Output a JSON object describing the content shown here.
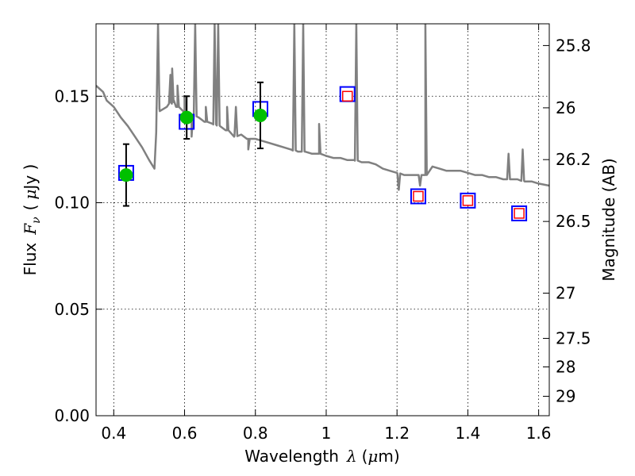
{
  "chart_data": {
    "type": "scatter",
    "xlabel_text": "Wavelength",
    "xlabel_symbol": "λ",
    "xlabel_unit_open": "(",
    "xlabel_unit_mu": "μ",
    "xlabel_unit_rest": "m)",
    "ylabel_text": "Flux",
    "ylabel_symbol": "F",
    "ylabel_sub": "ν",
    "ylabel_unit_open": "(",
    "ylabel_unit_mu": "μ",
    "ylabel_unit_rest": "Jy )",
    "y2label": "Magnitude (AB)",
    "xlim": [
      0.35,
      1.63
    ],
    "ylim": [
      0.0,
      0.184
    ],
    "x_ticks": [
      0.4,
      0.6,
      0.8,
      1.0,
      1.2,
      1.4,
      1.6
    ],
    "x_tick_labels": [
      "0.4",
      "0.6",
      "0.8",
      "1",
      "1.2",
      "1.4",
      "1.6"
    ],
    "y_ticks": [
      0.0,
      0.05,
      0.1,
      0.15
    ],
    "y_tick_labels": [
      "0.00",
      "0.05",
      "0.10",
      "0.15"
    ],
    "mag_ticks": [
      25.8,
      26,
      26.2,
      26.5,
      27,
      27.5,
      28,
      29
    ],
    "mag_tick_labels": [
      "25.8",
      "26",
      "26.2",
      "26.5",
      "27",
      "27.5",
      "28",
      "29"
    ],
    "grid": true,
    "colors": {
      "model": "#808080",
      "observed": "#00c000",
      "model_band_outer": "#0000ff",
      "model_band_inner": "#ff0000",
      "errorbar": "#000000"
    },
    "series": [
      {
        "name": "model spectrum",
        "kind": "line",
        "x": [
          0.35,
          0.37,
          0.38,
          0.4,
          0.42,
          0.44,
          0.46,
          0.48,
          0.5,
          0.515,
          0.52,
          0.521,
          0.53,
          0.55,
          0.57,
          0.58,
          0.6,
          0.62,
          0.64,
          0.66,
          0.68,
          0.7,
          0.72,
          0.74,
          0.76,
          0.78,
          0.8,
          0.82,
          0.84,
          0.86,
          0.88,
          0.9,
          0.92,
          0.94,
          0.96,
          0.98,
          1.0,
          1.02,
          1.04,
          1.06,
          1.08,
          1.1,
          1.12,
          1.14,
          1.16,
          1.18,
          1.2,
          1.22,
          1.24,
          1.26,
          1.28,
          1.3,
          1.32,
          1.34,
          1.36,
          1.38,
          1.4,
          1.42,
          1.44,
          1.46,
          1.48,
          1.5,
          1.52,
          1.54,
          1.56,
          1.58,
          1.6,
          1.63
        ],
        "y": [
          0.155,
          0.152,
          0.148,
          0.145,
          0.14,
          0.136,
          0.131,
          0.126,
          0.12,
          0.116,
          0.133,
          0.145,
          0.143,
          0.145,
          0.148,
          0.145,
          0.143,
          0.141,
          0.14,
          0.138,
          0.137,
          0.136,
          0.134,
          0.131,
          0.132,
          0.13,
          0.13,
          0.129,
          0.128,
          0.127,
          0.126,
          0.125,
          0.124,
          0.124,
          0.123,
          0.123,
          0.122,
          0.121,
          0.121,
          0.12,
          0.12,
          0.119,
          0.119,
          0.118,
          0.116,
          0.115,
          0.114,
          0.113,
          0.113,
          0.113,
          0.113,
          0.117,
          0.116,
          0.115,
          0.115,
          0.115,
          0.114,
          0.113,
          0.113,
          0.112,
          0.112,
          0.111,
          0.111,
          0.111,
          0.11,
          0.11,
          0.109,
          0.108
        ],
        "spikes": [
          {
            "x": 0.525,
            "y": 0.184
          },
          {
            "x": 0.56,
            "y": 0.16
          },
          {
            "x": 0.565,
            "y": 0.163
          },
          {
            "x": 0.58,
            "y": 0.155
          },
          {
            "x": 0.6,
            "y": 0.15
          },
          {
            "x": 0.63,
            "y": 0.184
          },
          {
            "x": 0.66,
            "y": 0.145
          },
          {
            "x": 0.685,
            "y": 0.184
          },
          {
            "x": 0.695,
            "y": 0.184
          },
          {
            "x": 0.72,
            "y": 0.145
          },
          {
            "x": 0.745,
            "y": 0.145
          },
          {
            "x": 0.91,
            "y": 0.184
          },
          {
            "x": 0.935,
            "y": 0.184
          },
          {
            "x": 0.98,
            "y": 0.137
          },
          {
            "x": 1.085,
            "y": 0.184
          },
          {
            "x": 1.28,
            "y": 0.184
          },
          {
            "x": 1.515,
            "y": 0.123
          },
          {
            "x": 1.555,
            "y": 0.125
          }
        ],
        "dips": [
          {
            "x": 0.62,
            "y": 0.131
          },
          {
            "x": 0.78,
            "y": 0.125
          },
          {
            "x": 1.205,
            "y": 0.106
          },
          {
            "x": 1.265,
            "y": 0.108
          }
        ]
      },
      {
        "name": "observed photometry",
        "kind": "errorbar",
        "x": [
          0.435,
          0.606,
          0.814
        ],
        "y": [
          0.113,
          0.14,
          0.141
        ],
        "yerr": [
          0.0145,
          0.01,
          0.0155
        ]
      },
      {
        "name": "model band flux",
        "kind": "square-outer",
        "x": [
          0.435,
          0.606,
          0.814,
          1.06,
          1.26,
          1.4,
          1.545
        ],
        "y": [
          0.114,
          0.138,
          0.144,
          0.151,
          0.103,
          0.101,
          0.095
        ]
      },
      {
        "name": "model band flux (inner)",
        "kind": "square-inner",
        "x": [
          1.06,
          1.26,
          1.4,
          1.545
        ],
        "y": [
          0.15,
          0.103,
          0.101,
          0.095
        ]
      }
    ]
  }
}
